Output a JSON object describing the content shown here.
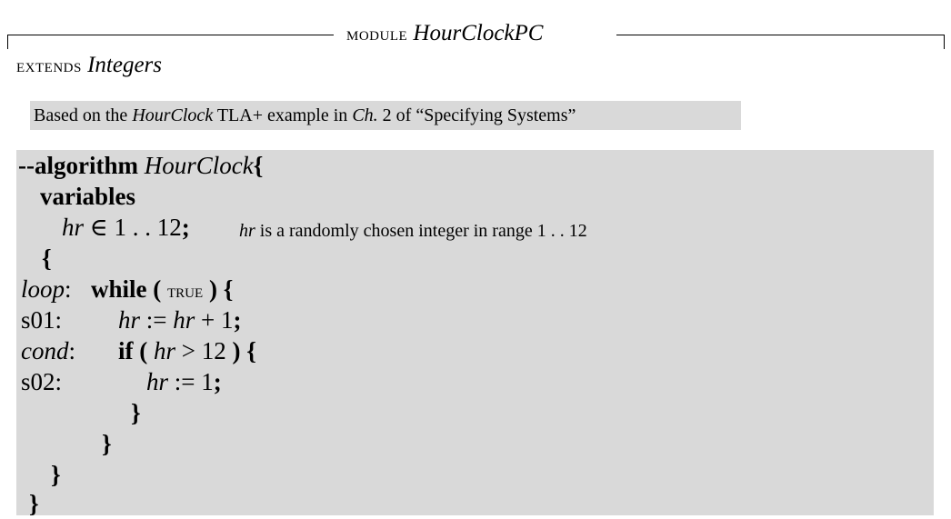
{
  "header": {
    "module_keyword": "module",
    "module_name": "HourClockPC",
    "extends_keyword": "extends",
    "extends_name": "Integers"
  },
  "comment": {
    "prefix": "Based on the ",
    "name": "HourClock",
    "middle": " TLA+ example in ",
    "ch": "Ch.",
    "suffix": " 2 of “Specifying Systems”"
  },
  "algorithm": {
    "kw_algorithm": "--algorithm",
    "name": "HourClock",
    "open_brace": "{",
    "kw_variables": "variables",
    "var_decl_var": "hr",
    "var_decl_rest": " ∈ 1 . . 12",
    "semicolon": ";",
    "var_comment_var": "hr",
    "var_comment_text": " is a randomly chosen integer in range 1 . . 12",
    "body_open": "{",
    "label_loop": "loop",
    "label_s01": "s01:",
    "label_cond": "cond",
    "label_s02": "s02:",
    "colon": ":",
    "kw_while": "while",
    "paren_open": "(",
    "kw_true": "true",
    "paren_close": ")",
    "while_brace": "{",
    "assign1_lhs": "hr",
    "assign1_op": " := ",
    "assign1_rhs_var": "hr",
    "assign1_rhs_rest": " + 1",
    "kw_if": "if",
    "if_var": "hr",
    "if_rest": " > 12",
    "if_brace": "{",
    "assign2_lhs": "hr",
    "assign2_rest": " := 1",
    "close_if": "}",
    "close_while": "}",
    "close_body": "}",
    "close_algo": "}"
  }
}
